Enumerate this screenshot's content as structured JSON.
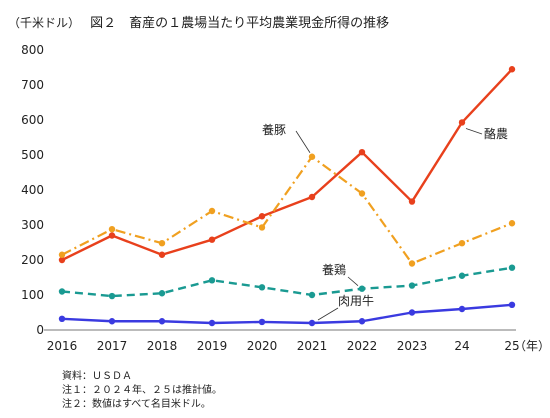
{
  "chart_data": {
    "type": "line",
    "title": "図２　畜産の１農場当たり平均農業現金所得の推移",
    "unit": "（千米ドル）",
    "x_unit": "（年）",
    "x": [
      "2016",
      "2017",
      "2018",
      "2019",
      "2020",
      "2021",
      "2022",
      "2023",
      "24",
      "25"
    ],
    "ylim": [
      0,
      800
    ],
    "yticks": [
      "0",
      "100",
      "200",
      "300",
      "400",
      "500",
      "600",
      "700",
      "800"
    ],
    "grid": false,
    "series": [
      {
        "name": "酪農",
        "color": "#e8401c",
        "style": "solid",
        "values": [
          200,
          270,
          215,
          258,
          325,
          380,
          508,
          367,
          593,
          745
        ]
      },
      {
        "name": "養豚",
        "color": "#f0a020",
        "style": "dashdot",
        "values": [
          215,
          288,
          248,
          340,
          293,
          495,
          390,
          190,
          248,
          305
        ]
      },
      {
        "name": "養鶏",
        "color": "#1a9a92",
        "style": "dashed",
        "values": [
          110,
          97,
          105,
          142,
          122,
          100,
          118,
          127,
          155,
          178
        ]
      },
      {
        "name": "肉用牛",
        "color": "#3a3ae0",
        "style": "solid",
        "values": [
          32,
          25,
          25,
          20,
          23,
          20,
          25,
          50,
          60,
          72
        ]
      }
    ],
    "notes": [
      "資料：ＵＳＤＡ",
      "注１：２０２４年、２５は推計値。",
      "注２：数値はすべて名目米ドル。"
    ]
  }
}
